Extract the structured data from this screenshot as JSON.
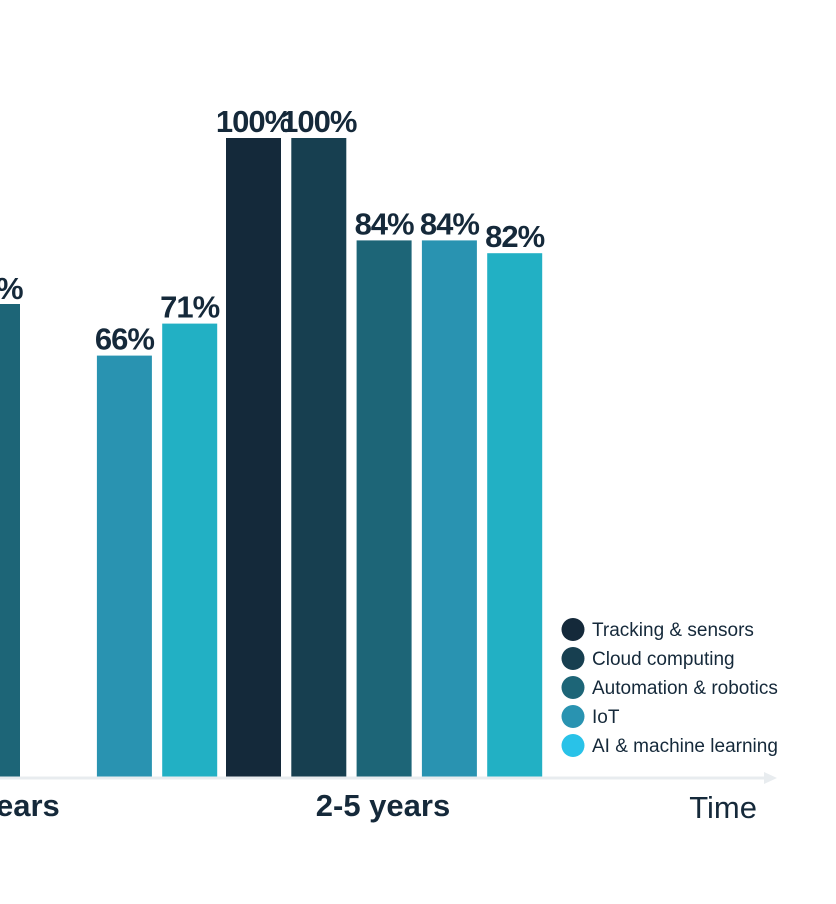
{
  "chart_data": {
    "type": "bar",
    "title": "",
    "xlabel": "Time",
    "ylabel": "",
    "ylim": [
      0,
      100
    ],
    "grid": false,
    "legend_position": "bottom-right",
    "value_suffix": "%",
    "categories": [
      "ears",
      "2-5 years"
    ],
    "series": [
      {
        "name": "Tracking & sensors",
        "color": "#14293a",
        "values": [
          null,
          100
        ]
      },
      {
        "name": "Cloud computing",
        "color": "#173f50",
        "values": [
          null,
          100
        ]
      },
      {
        "name": "Automation & robotics",
        "color": "#1d6577",
        "values": [
          null,
          84
        ]
      },
      {
        "name": "IoT",
        "color": "#2993b1",
        "values": [
          66,
          84
        ]
      },
      {
        "name": "AI & machine learning",
        "color": "#22b0c4",
        "values": [
          71,
          82
        ]
      }
    ],
    "partial_labels": [
      {
        "category": "ears",
        "series": "Automation & robotics",
        "text": "%"
      }
    ],
    "legend_colors": [
      "#14293a",
      "#173f50",
      "#1d6577",
      "#2993b1",
      "#29c2e8"
    ],
    "text_color": "#15293a",
    "axis_color": "#e8ecef"
  }
}
